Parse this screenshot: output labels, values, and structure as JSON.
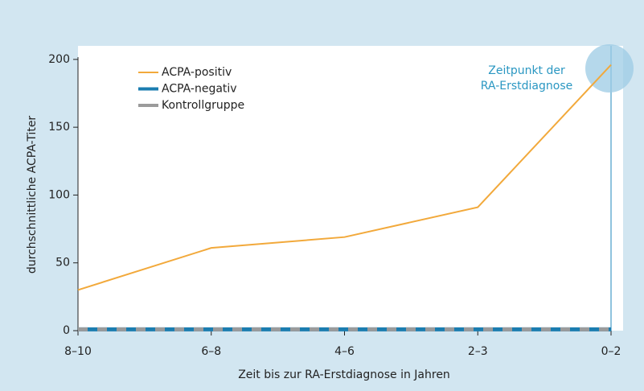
{
  "chart_data": {
    "type": "line",
    "x_label": "Zeit bis zur RA-Erstdiagnose in Jahren",
    "y_label": "durchschnittliche ACPA-Titer",
    "annotation": [
      "Zeitpunkt der",
      "RA-Erstdiagnose"
    ],
    "categories": [
      "8–10",
      "6–8",
      "4–6",
      "2–3",
      "0–2"
    ],
    "series": [
      {
        "name": "ACPA-positiv",
        "color": "#f2a93b",
        "values": [
          30,
          61,
          69,
          91,
          196
        ]
      },
      {
        "name": "ACPA-negativ",
        "color": "#1b7db0",
        "values": [
          1,
          1,
          1,
          1,
          1
        ]
      },
      {
        "name": "Kontrollgruppe",
        "color": "#9b9b9b",
        "values": [
          1,
          1,
          1,
          1,
          1
        ]
      }
    ],
    "ylim": [
      0,
      210
    ],
    "yticks": [
      0,
      50,
      100,
      150,
      200
    ],
    "legend": "upper left"
  }
}
